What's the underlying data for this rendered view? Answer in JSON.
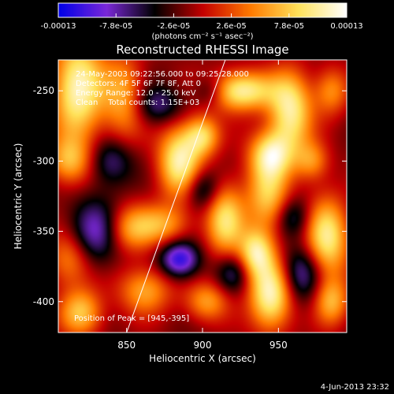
{
  "chart_data": {
    "type": "heatmap",
    "title": "Reconstructed RHESSI Image",
    "xlabel": "Heliocentric X (arcsec)",
    "ylabel": "Heliocentric Y (arcsec)",
    "xlim": [
      805,
      995
    ],
    "ylim": [
      -422,
      -228
    ],
    "x_ticks": [
      850,
      900,
      950
    ],
    "x_tick_labels": [
      "850",
      "900",
      "950"
    ],
    "y_ticks": [
      -250,
      -300,
      -350,
      -400
    ],
    "y_tick_labels": [
      "-250",
      "-300",
      "-350",
      "-400"
    ],
    "colorbar": {
      "tick_labels": [
        "-0.00013",
        "-7.8e-05",
        "-2.6e-05",
        "2.6e-05",
        "7.8e-05",
        "0.00013"
      ],
      "ticks": [
        -0.00013,
        -7.8e-05,
        -2.6e-05,
        2.6e-05,
        7.8e-05,
        0.00013
      ],
      "range": [
        -0.00013,
        0.00013
      ],
      "unit_label": "(photons cm⁻² s⁻¹ asec⁻²)",
      "colormap": [
        "#0000e8",
        "#7a28d8",
        "#000000",
        "#c40000",
        "#ff7a00",
        "#ffe25a",
        "#ffffff"
      ]
    },
    "annotations": {
      "line1": "24-May-2003 09:22:56.000 to 09:25:28.000",
      "line2": "Detectors: 4F 5F 6F 7F 8F, Att 0",
      "line3": "Energy Range: 12.0 - 25.0 keV",
      "line4": "Clean    Total counts: 1.15E+03",
      "peak": "Position of Peak = [945,-395]"
    },
    "limb_line": [
      [
        850,
        -422
      ],
      [
        915,
        -228
      ]
    ],
    "blobs": [
      {
        "x": 818,
        "y": -248,
        "amp": 1.0,
        "sx": 12,
        "sy": 26
      },
      {
        "x": 812,
        "y": -300,
        "amp": 0.6,
        "sx": 10,
        "sy": 12
      },
      {
        "x": 812,
        "y": -370,
        "amp": 0.5,
        "sx": 10,
        "sy": 14
      },
      {
        "x": 820,
        "y": -408,
        "amp": 0.7,
        "sx": 10,
        "sy": 12
      },
      {
        "x": 848,
        "y": -255,
        "amp": 0.6,
        "sx": 10,
        "sy": 22
      },
      {
        "x": 852,
        "y": -348,
        "amp": 0.6,
        "sx": 12,
        "sy": 12
      },
      {
        "x": 885,
        "y": -300,
        "amp": 0.95,
        "sx": 10,
        "sy": 18
      },
      {
        "x": 900,
        "y": -282,
        "amp": 0.7,
        "sx": 8,
        "sy": 10
      },
      {
        "x": 875,
        "y": -345,
        "amp": 0.5,
        "sx": 12,
        "sy": 10
      },
      {
        "x": 862,
        "y": -392,
        "amp": 0.6,
        "sx": 12,
        "sy": 12
      },
      {
        "x": 915,
        "y": -342,
        "amp": 0.8,
        "sx": 9,
        "sy": 18
      },
      {
        "x": 903,
        "y": -400,
        "amp": 0.55,
        "sx": 10,
        "sy": 10
      },
      {
        "x": 925,
        "y": -250,
        "amp": 0.95,
        "sx": 16,
        "sy": 10
      },
      {
        "x": 958,
        "y": -265,
        "amp": 0.9,
        "sx": 10,
        "sy": 20
      },
      {
        "x": 945,
        "y": -295,
        "amp": 0.8,
        "sx": 10,
        "sy": 12
      },
      {
        "x": 943,
        "y": -325,
        "amp": 0.7,
        "sx": 10,
        "sy": 18
      },
      {
        "x": 935,
        "y": -365,
        "amp": 0.8,
        "sx": 8,
        "sy": 12
      },
      {
        "x": 945,
        "y": -395,
        "amp": 1.0,
        "sx": 10,
        "sy": 18
      },
      {
        "x": 972,
        "y": -300,
        "amp": 0.5,
        "sx": 8,
        "sy": 10
      },
      {
        "x": 985,
        "y": -250,
        "amp": 0.5,
        "sx": 8,
        "sy": 12
      },
      {
        "x": 982,
        "y": -355,
        "amp": 0.9,
        "sx": 10,
        "sy": 20
      },
      {
        "x": 985,
        "y": -400,
        "amp": 0.6,
        "sx": 8,
        "sy": 12
      },
      {
        "x": 840,
        "y": -300,
        "amp": -0.45,
        "sx": 10,
        "sy": 12
      },
      {
        "x": 830,
        "y": -350,
        "amp": -0.6,
        "sx": 12,
        "sy": 16
      },
      {
        "x": 885,
        "y": -370,
        "amp": -0.8,
        "sx": 9,
        "sy": 9
      },
      {
        "x": 870,
        "y": -260,
        "amp": -0.45,
        "sx": 12,
        "sy": 10
      },
      {
        "x": 900,
        "y": -320,
        "amp": -0.45,
        "sx": 8,
        "sy": 10
      },
      {
        "x": 965,
        "y": -380,
        "amp": -0.55,
        "sx": 10,
        "sy": 14
      },
      {
        "x": 920,
        "y": -380,
        "amp": -0.4,
        "sx": 8,
        "sy": 10
      },
      {
        "x": 960,
        "y": -340,
        "amp": -0.4,
        "sx": 8,
        "sy": 10
      },
      {
        "x": 905,
        "y": -250,
        "amp": -0.4,
        "sx": 8,
        "sy": 8
      }
    ]
  },
  "footer": {
    "date_stamp": "4-Jun-2013 23:32"
  }
}
